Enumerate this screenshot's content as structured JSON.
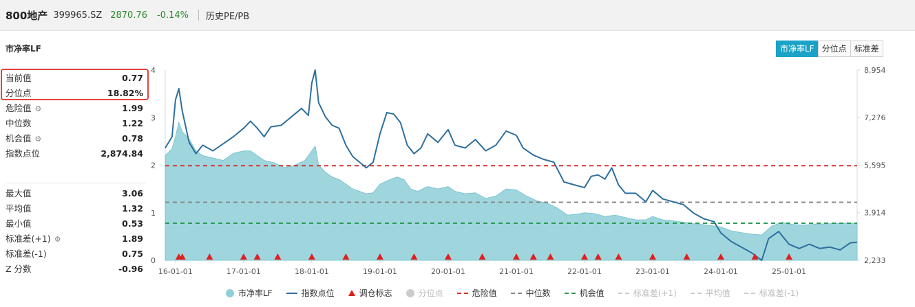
{
  "header": {
    "name": "800地产",
    "code": "399965.SZ",
    "price": "2870.76",
    "change": "-0.14%",
    "history_link": "历史PE/PB"
  },
  "section_title": "市净率LF",
  "tabs": [
    {
      "label": "市净率LF",
      "active": true
    },
    {
      "label": "分位点",
      "active": false
    },
    {
      "label": "标准差",
      "active": false
    }
  ],
  "stats": {
    "current_label": "当前值",
    "current": "0.77",
    "percentile_label": "分位点",
    "percentile": "18.82%",
    "danger_label": "危险值",
    "danger": "1.99",
    "median_label": "中位数",
    "median": "1.22",
    "chance_label": "机会值",
    "chance": "0.78",
    "index_label": "指数点位",
    "index": "2,874.84",
    "max_label": "最大值",
    "max": "3.06",
    "avg_label": "平均值",
    "avg": "1.32",
    "min_label": "最小值",
    "min": "0.53",
    "std_plus_label": "标准差(+1)",
    "std_plus": "1.89",
    "std_minus_label": "标准差(-1)",
    "std_minus": "0.75",
    "z_label": "Z 分数",
    "z": "-0.96"
  },
  "legend": [
    {
      "label": "市净率LF",
      "kind": "dot",
      "color": "#8ecfd8",
      "off": false
    },
    {
      "label": "指数点位",
      "kind": "line",
      "color": "#2e6f9c",
      "off": false
    },
    {
      "label": "调仓标志",
      "kind": "tri",
      "color": "#e02020",
      "off": false
    },
    {
      "label": "分位点",
      "kind": "dot",
      "color": "#cccccc",
      "off": true
    },
    {
      "label": "危险值",
      "kind": "dash",
      "color": "#d93030",
      "off": false
    },
    {
      "label": "中位数",
      "kind": "dash",
      "color": "#888888",
      "off": false
    },
    {
      "label": "机会值",
      "kind": "dash",
      "color": "#2a9a55",
      "off": false
    },
    {
      "label": "标准差(+1)",
      "kind": "dash",
      "color": "#cccccc",
      "off": true
    },
    {
      "label": "平均值",
      "kind": "dash",
      "color": "#cccccc",
      "off": true
    },
    {
      "label": "标准差(-1)",
      "kind": "dash",
      "color": "#cccccc",
      "off": true
    }
  ],
  "chart_data": {
    "type": "area",
    "x_ticks": [
      "16-01-01",
      "17-01-01",
      "18-01-01",
      "19-01-01",
      "20-01-01",
      "21-01-01",
      "22-01-01",
      "23-01-01",
      "24-01-01",
      "25-01-01"
    ],
    "y_left_ticks": [
      "0",
      "1",
      "2",
      "3",
      "4"
    ],
    "y_left_range": [
      0,
      4
    ],
    "y_right_ticks": [
      "2,233",
      "3,914",
      "5,595",
      "7,276",
      "8,954"
    ],
    "y_right_range": [
      2233,
      8954
    ],
    "reference_lines": {
      "danger": 1.99,
      "median": 1.22,
      "chance": 0.78
    },
    "colors": {
      "area": "#8ecfd8",
      "area_line": "#7cc4cf",
      "index": "#2e6f9c",
      "danger": "#d93030",
      "median": "#888888",
      "chance": "#2a9a55",
      "marker": "#e02020"
    },
    "x_start": 2015.85,
    "x_end": 2026.0,
    "series": [
      {
        "name": "市净率LF",
        "axis": "left",
        "points": [
          [
            2015.85,
            2.2
          ],
          [
            2015.95,
            2.35
          ],
          [
            2016.0,
            2.6
          ],
          [
            2016.05,
            2.9
          ],
          [
            2016.1,
            2.7
          ],
          [
            2016.2,
            2.55
          ],
          [
            2016.3,
            2.3
          ],
          [
            2016.4,
            2.2
          ],
          [
            2016.55,
            2.15
          ],
          [
            2016.7,
            2.1
          ],
          [
            2016.85,
            2.25
          ],
          [
            2017.0,
            2.3
          ],
          [
            2017.1,
            2.3
          ],
          [
            2017.2,
            2.2
          ],
          [
            2017.3,
            2.1
          ],
          [
            2017.45,
            2.05
          ],
          [
            2017.6,
            1.95
          ],
          [
            2017.75,
            2.0
          ],
          [
            2017.9,
            2.1
          ],
          [
            2018.0,
            2.3
          ],
          [
            2018.05,
            2.4
          ],
          [
            2018.1,
            2.0
          ],
          [
            2018.2,
            1.85
          ],
          [
            2018.3,
            1.75
          ],
          [
            2018.4,
            1.7
          ],
          [
            2018.5,
            1.6
          ],
          [
            2018.6,
            1.5
          ],
          [
            2018.7,
            1.45
          ],
          [
            2018.8,
            1.4
          ],
          [
            2018.9,
            1.42
          ],
          [
            2019.0,
            1.6
          ],
          [
            2019.15,
            1.7
          ],
          [
            2019.25,
            1.75
          ],
          [
            2019.35,
            1.7
          ],
          [
            2019.45,
            1.5
          ],
          [
            2019.55,
            1.45
          ],
          [
            2019.7,
            1.55
          ],
          [
            2019.85,
            1.5
          ],
          [
            2020.0,
            1.55
          ],
          [
            2020.1,
            1.45
          ],
          [
            2020.25,
            1.4
          ],
          [
            2020.4,
            1.42
          ],
          [
            2020.55,
            1.3
          ],
          [
            2020.7,
            1.35
          ],
          [
            2020.85,
            1.5
          ],
          [
            2021.0,
            1.48
          ],
          [
            2021.15,
            1.35
          ],
          [
            2021.3,
            1.25
          ],
          [
            2021.45,
            1.2
          ],
          [
            2021.6,
            1.1
          ],
          [
            2021.75,
            0.95
          ],
          [
            2021.9,
            0.97
          ],
          [
            2022.0,
            1.0
          ],
          [
            2022.15,
            0.98
          ],
          [
            2022.3,
            0.92
          ],
          [
            2022.45,
            0.95
          ],
          [
            2022.6,
            0.9
          ],
          [
            2022.75,
            0.85
          ],
          [
            2022.9,
            0.85
          ],
          [
            2023.0,
            0.92
          ],
          [
            2023.15,
            0.85
          ],
          [
            2023.3,
            0.83
          ],
          [
            2023.45,
            0.8
          ],
          [
            2023.6,
            0.77
          ],
          [
            2023.75,
            0.75
          ],
          [
            2023.9,
            0.72
          ],
          [
            2024.0,
            0.7
          ],
          [
            2024.15,
            0.62
          ],
          [
            2024.3,
            0.58
          ],
          [
            2024.45,
            0.55
          ],
          [
            2024.6,
            0.53
          ],
          [
            2024.75,
            0.72
          ],
          [
            2024.9,
            0.8
          ],
          [
            2025.0,
            0.76
          ],
          [
            2025.2,
            0.74
          ],
          [
            2025.4,
            0.76
          ],
          [
            2025.6,
            0.77
          ],
          [
            2025.8,
            0.78
          ],
          [
            2026.0,
            0.77
          ]
        ]
      },
      {
        "name": "指数点位",
        "axis": "right",
        "points": [
          [
            2015.85,
            6200
          ],
          [
            2015.95,
            6600
          ],
          [
            2016.0,
            7900
          ],
          [
            2016.05,
            8300
          ],
          [
            2016.1,
            7500
          ],
          [
            2016.2,
            6400
          ],
          [
            2016.3,
            6000
          ],
          [
            2016.4,
            6300
          ],
          [
            2016.55,
            6100
          ],
          [
            2016.7,
            6350
          ],
          [
            2016.85,
            6600
          ],
          [
            2017.0,
            6900
          ],
          [
            2017.1,
            7150
          ],
          [
            2017.2,
            6900
          ],
          [
            2017.3,
            6600
          ],
          [
            2017.4,
            6950
          ],
          [
            2017.55,
            7000
          ],
          [
            2017.7,
            7300
          ],
          [
            2017.85,
            7600
          ],
          [
            2017.95,
            7350
          ],
          [
            2018.0,
            8500
          ],
          [
            2018.05,
            8954
          ],
          [
            2018.1,
            7800
          ],
          [
            2018.2,
            7300
          ],
          [
            2018.3,
            7000
          ],
          [
            2018.4,
            6900
          ],
          [
            2018.5,
            6300
          ],
          [
            2018.6,
            5900
          ],
          [
            2018.7,
            5700
          ],
          [
            2018.8,
            5500
          ],
          [
            2018.9,
            5700
          ],
          [
            2019.0,
            6700
          ],
          [
            2019.1,
            7450
          ],
          [
            2019.2,
            7400
          ],
          [
            2019.3,
            7100
          ],
          [
            2019.4,
            6300
          ],
          [
            2019.5,
            6000
          ],
          [
            2019.6,
            6200
          ],
          [
            2019.7,
            6700
          ],
          [
            2019.85,
            6400
          ],
          [
            2020.0,
            6850
          ],
          [
            2020.1,
            6300
          ],
          [
            2020.25,
            6200
          ],
          [
            2020.4,
            6500
          ],
          [
            2020.55,
            6100
          ],
          [
            2020.7,
            6300
          ],
          [
            2020.85,
            6800
          ],
          [
            2021.0,
            6650
          ],
          [
            2021.1,
            6200
          ],
          [
            2021.25,
            5950
          ],
          [
            2021.4,
            5800
          ],
          [
            2021.55,
            5700
          ],
          [
            2021.7,
            5000
          ],
          [
            2021.85,
            4900
          ],
          [
            2022.0,
            4800
          ],
          [
            2022.1,
            5200
          ],
          [
            2022.2,
            5250
          ],
          [
            2022.3,
            5100
          ],
          [
            2022.4,
            5500
          ],
          [
            2022.5,
            4900
          ],
          [
            2022.6,
            4600
          ],
          [
            2022.75,
            4600
          ],
          [
            2022.9,
            4300
          ],
          [
            2023.0,
            4700
          ],
          [
            2023.15,
            4400
          ],
          [
            2023.3,
            4300
          ],
          [
            2023.45,
            4200
          ],
          [
            2023.6,
            3900
          ],
          [
            2023.75,
            3700
          ],
          [
            2023.9,
            3600
          ],
          [
            2024.0,
            3200
          ],
          [
            2024.15,
            2900
          ],
          [
            2024.3,
            2700
          ],
          [
            2024.45,
            2500
          ],
          [
            2024.6,
            2233
          ],
          [
            2024.7,
            3000
          ],
          [
            2024.85,
            3250
          ],
          [
            2025.0,
            2800
          ],
          [
            2025.15,
            2650
          ],
          [
            2025.3,
            2800
          ],
          [
            2025.45,
            2650
          ],
          [
            2025.6,
            2700
          ],
          [
            2025.75,
            2600
          ],
          [
            2025.9,
            2850
          ],
          [
            2026.0,
            2874
          ]
        ]
      }
    ],
    "markers_x": [
      2016.05,
      2016.1,
      2016.5,
      2017.0,
      2017.2,
      2017.5,
      2018.0,
      2018.5,
      2019.0,
      2019.5,
      2020.0,
      2020.5,
      2021.0,
      2021.25,
      2021.5,
      2022.0,
      2022.2,
      2022.5,
      2023.0,
      2023.5,
      2024.0,
      2024.5,
      2025.0
    ]
  }
}
